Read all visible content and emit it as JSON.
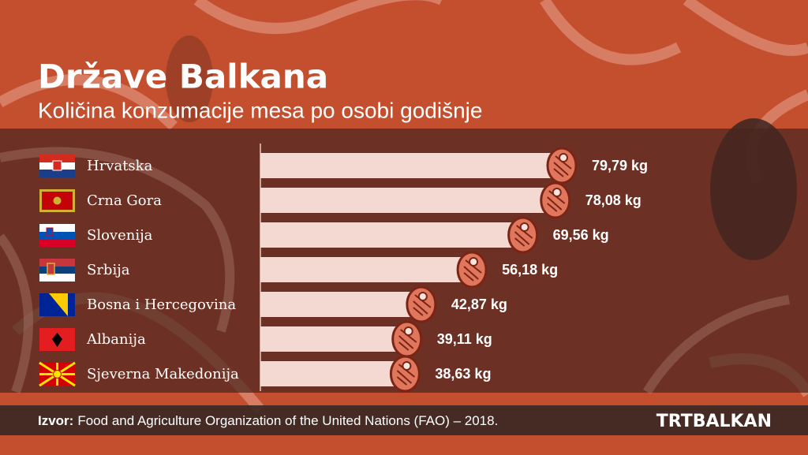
{
  "chart_data": {
    "type": "hbar",
    "title": "Države Balkana",
    "subtitle": "Količina konzumacije mesa po osobi godišnje",
    "categories": [
      "Hrvatska",
      "Crna Gora",
      "Slovenija",
      "Srbija",
      "Bosna i Hercegovina",
      "Albanija",
      "Sjeverna Makedonija"
    ],
    "values": [
      79.79,
      78.08,
      69.56,
      56.18,
      42.87,
      39.11,
      38.63
    ],
    "value_labels": [
      "79,79 kg",
      "78,08 kg",
      "69,56 kg",
      "56,18 kg",
      "42,87 kg",
      "39,11 kg",
      "38,63 kg"
    ],
    "color": "#f4d9d3",
    "source_label": "Izvor:",
    "source": "Food and Agriculture Organization of the United Nations (FAO) – 2018.",
    "brand": "TRTBALKAN"
  }
}
